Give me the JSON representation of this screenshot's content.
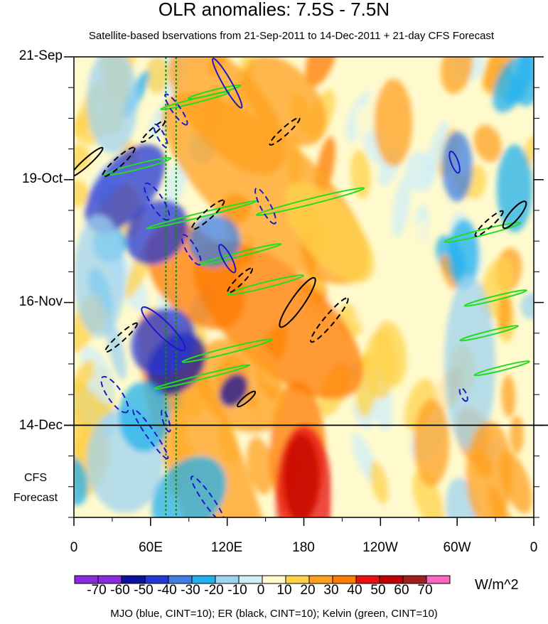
{
  "figure": {
    "title": "OLR anomalies: 7.5S - 7.5N",
    "subtitle": "Satellite-based bservations from 21-Sep-2011 to 14-Dec-2011 + 21-day CFS Forecast",
    "footnote": "MJO (blue, CINT=10); ER (black, CINT=10); Kelvin (green, CINT=10)",
    "forecast_label_line1": "CFS",
    "forecast_label_line2": "Forecast",
    "units": "W/m^2"
  },
  "colors": {
    "mjo": "#1a1acc",
    "er": "#000000",
    "kelvin": "#22dd22",
    "meridian": "#118811",
    "scale": [
      "#8a2be2",
      "#1010a0",
      "#2436d6",
      "#3f7fe6",
      "#22b0ee",
      "#9fd3f2",
      "#cfeef8",
      "#fffacd",
      "#ffd24a",
      "#ffa020",
      "#ff7a00",
      "#e81010",
      "#c00000",
      "#a02020",
      "#ff66c0"
    ]
  },
  "chart_data": {
    "type": "heatmap",
    "title": "OLR anomalies: 7.5S - 7.5N",
    "subtitle": "Satellite-based bservations from 21-Sep-2011 to 14-Dec-2011 + 21-day CFS Forecast",
    "xlabel": "",
    "ylabel": "",
    "x_tick_labels": [
      "0",
      "60E",
      "120E",
      "180",
      "120W",
      "60W",
      "0"
    ],
    "x_tick_longitudes": [
      0,
      60,
      120,
      180,
      240,
      300,
      360
    ],
    "xlim": [
      0,
      360
    ],
    "y_tick_labels": [
      "21-Sep",
      "19-Oct",
      "16-Nov",
      "14-Dec"
    ],
    "y_tick_days": [
      0,
      28,
      56,
      84
    ],
    "ylim_days": [
      0,
      105
    ],
    "observation_end_day": 84,
    "forecast_days": 21,
    "colorbar": {
      "units": "W/m^2",
      "levels": [
        -70,
        -60,
        -50,
        -40,
        -30,
        -20,
        -10,
        0,
        10,
        20,
        30,
        40,
        50,
        60,
        70
      ],
      "labels": [
        "-70",
        "-60",
        "-50",
        "-40",
        "-30",
        "-20",
        "-10",
        "0",
        "10",
        "20",
        "30",
        "40",
        "50",
        "60",
        "70"
      ]
    },
    "dotted_meridians_lon": [
      72,
      80
    ],
    "mjo_contours": [
      {
        "lon": 68,
        "day": 18,
        "a": 18,
        "b": 5,
        "ang": 62,
        "dash": true
      },
      {
        "lon": 65,
        "day": 33,
        "a": 30,
        "b": 9,
        "ang": 58,
        "dash": true
      },
      {
        "lon": 80,
        "day": 12,
        "a": 26,
        "b": 6,
        "ang": 55,
        "dash": true
      },
      {
        "lon": 120,
        "day": 6,
        "a": 40,
        "b": 6,
        "ang": 60,
        "dash": false
      },
      {
        "lon": 92,
        "day": 44,
        "a": 24,
        "b": 7,
        "ang": 60,
        "dash": true
      },
      {
        "lon": 120,
        "day": 46,
        "a": 22,
        "b": 6,
        "ang": 62,
        "dash": false
      },
      {
        "lon": 150,
        "day": 34,
        "a": 28,
        "b": 7,
        "ang": 62,
        "dash": true
      },
      {
        "lon": 70,
        "day": 62,
        "a": 42,
        "b": 10,
        "ang": 45,
        "dash": false
      },
      {
        "lon": 32,
        "day": 77,
        "a": 30,
        "b": 10,
        "ang": 55,
        "dash": true
      },
      {
        "lon": 72,
        "day": 83,
        "a": 16,
        "b": 4,
        "ang": 72,
        "dash": true
      },
      {
        "lon": 60,
        "day": 86,
        "a": 42,
        "b": 6,
        "ang": 55,
        "dash": true
      },
      {
        "lon": 105,
        "day": 101,
        "a": 40,
        "b": 7,
        "ang": 55,
        "dash": true
      },
      {
        "lon": 298,
        "day": 24,
        "a": 16,
        "b": 5,
        "ang": 70,
        "dash": false
      },
      {
        "lon": 305,
        "day": 77,
        "a": 10,
        "b": 4,
        "ang": 65,
        "dash": true
      }
    ],
    "er_contours": [
      {
        "lon": 10,
        "day": 24,
        "a": 30,
        "b": 5,
        "ang": -42,
        "dash": false
      },
      {
        "lon": 35,
        "day": 24,
        "a": 30,
        "b": 6,
        "ang": -42,
        "dash": true
      },
      {
        "lon": 62,
        "day": 17,
        "a": 22,
        "b": 4,
        "ang": -42,
        "dash": true
      },
      {
        "lon": 105,
        "day": 36,
        "a": 30,
        "b": 6,
        "ang": -42,
        "dash": true
      },
      {
        "lon": 165,
        "day": 17,
        "a": 28,
        "b": 5,
        "ang": -42,
        "dash": true
      },
      {
        "lon": 37,
        "day": 64,
        "a": 30,
        "b": 5,
        "ang": -42,
        "dash": true
      },
      {
        "lon": 130,
        "day": 51,
        "a": 24,
        "b": 5,
        "ang": -45,
        "dash": true
      },
      {
        "lon": 175,
        "day": 56,
        "a": 42,
        "b": 9,
        "ang": -55,
        "dash": false
      },
      {
        "lon": 200,
        "day": 60,
        "a": 40,
        "b": 7,
        "ang": -50,
        "dash": true
      },
      {
        "lon": 135,
        "day": 78,
        "a": 16,
        "b": 4,
        "ang": -40,
        "dash": false
      },
      {
        "lon": 325,
        "day": 38,
        "a": 26,
        "b": 5,
        "ang": -42,
        "dash": true
      },
      {
        "lon": 345,
        "day": 36,
        "a": 24,
        "b": 7,
        "ang": -50,
        "dash": false
      }
    ],
    "kelvin_contours": [
      {
        "lon": 50,
        "day": 25,
        "a": 48,
        "b": 4
      },
      {
        "lon": 95,
        "day": 10,
        "a": 50,
        "b": 3
      },
      {
        "lon": 110,
        "day": 8,
        "a": 38,
        "b": 3
      },
      {
        "lon": 185,
        "day": 33,
        "a": 78,
        "b": 4
      },
      {
        "lon": 100,
        "day": 36,
        "a": 80,
        "b": 3
      },
      {
        "lon": 130,
        "day": 45,
        "a": 60,
        "b": 3
      },
      {
        "lon": 150,
        "day": 52,
        "a": 55,
        "b": 4
      },
      {
        "lon": 120,
        "day": 67,
        "a": 65,
        "b": 4
      },
      {
        "lon": 100,
        "day": 73,
        "a": 70,
        "b": 3
      },
      {
        "lon": 320,
        "day": 40,
        "a": 55,
        "b": 4
      },
      {
        "lon": 330,
        "day": 55,
        "a": 45,
        "b": 3
      },
      {
        "lon": 325,
        "day": 63,
        "a": 42,
        "b": 3
      },
      {
        "lon": 335,
        "day": 71,
        "a": 40,
        "b": 3
      }
    ]
  }
}
